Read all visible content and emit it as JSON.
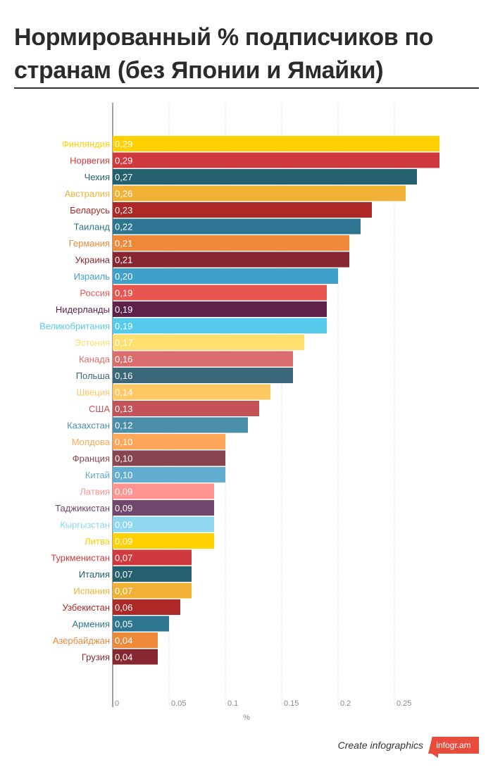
{
  "chart_data": {
    "type": "bar",
    "orientation": "horizontal",
    "title": "Нормированный % подписчиков по странам (без Японии и Ямайки)",
    "xlabel": "%",
    "ylabel": "",
    "xlim": [
      0,
      0.3
    ],
    "x_ticks": [
      0,
      0.05,
      0.1,
      0.15,
      0.2,
      0.25
    ],
    "x_tick_labels": [
      "0",
      "0.05",
      "0.1",
      "0.15",
      "0.2",
      "0.25"
    ],
    "grid": true,
    "categories": [
      "Финляндия",
      "Норвегия",
      "Чехия",
      "Австралия",
      "Беларусь",
      "Таиланд",
      "Германия",
      "Украина",
      "Израиль",
      "Россия",
      "Нидерланды",
      "Великобритания",
      "Эстония",
      "Канада",
      "Польша",
      "Швеция",
      "США",
      "Казахстан",
      "Молдова",
      "Франция",
      "Китай",
      "Латвия",
      "Таджикистан",
      "Кыргызстан",
      "Литва",
      "Туркменистан",
      "Италия",
      "Испания",
      "Узбекистан",
      "Армения",
      "Азербайджан",
      "Грузия"
    ],
    "values": [
      0.29,
      0.29,
      0.27,
      0.26,
      0.23,
      0.22,
      0.21,
      0.21,
      0.2,
      0.19,
      0.19,
      0.19,
      0.17,
      0.16,
      0.16,
      0.14,
      0.13,
      0.12,
      0.1,
      0.1,
      0.1,
      0.09,
      0.09,
      0.09,
      0.09,
      0.07,
      0.07,
      0.07,
      0.06,
      0.05,
      0.04,
      0.04
    ],
    "value_labels": [
      "0,29",
      "0,29",
      "0,27",
      "0,26",
      "0,23",
      "0,22",
      "0,21",
      "0,21",
      "0,20",
      "0,19",
      "0,19",
      "0,19",
      "0,17",
      "0,16",
      "0,16",
      "0,14",
      "0,13",
      "0,12",
      "0,10",
      "0,10",
      "0,10",
      "0,09",
      "0,09",
      "0,09",
      "0,09",
      "0,07",
      "0,07",
      "0,07",
      "0,06",
      "0,05",
      "0,04",
      "0,04"
    ],
    "colors": [
      "#FFD100",
      "#D0393E",
      "#24606E",
      "#F0B135",
      "#AE2925",
      "#2D7590",
      "#F0883A",
      "#872731",
      "#3FA0C9",
      "#E85650",
      "#5E224A",
      "#55CAEA",
      "#FFE06F",
      "#DA6D6D",
      "#3A6779",
      "#FFC862",
      "#C35356",
      "#4A8EA9",
      "#FFA659",
      "#89454F",
      "#63ADD0",
      "#FF9490",
      "#70476A",
      "#8FD7EE",
      "#FFD100",
      "#D0393E",
      "#24606E",
      "#F0B135",
      "#AE2925",
      "#2D7590",
      "#F0883A",
      "#872731"
    ]
  },
  "footer": {
    "text": "Create infographics",
    "logo": "infogr.am"
  }
}
